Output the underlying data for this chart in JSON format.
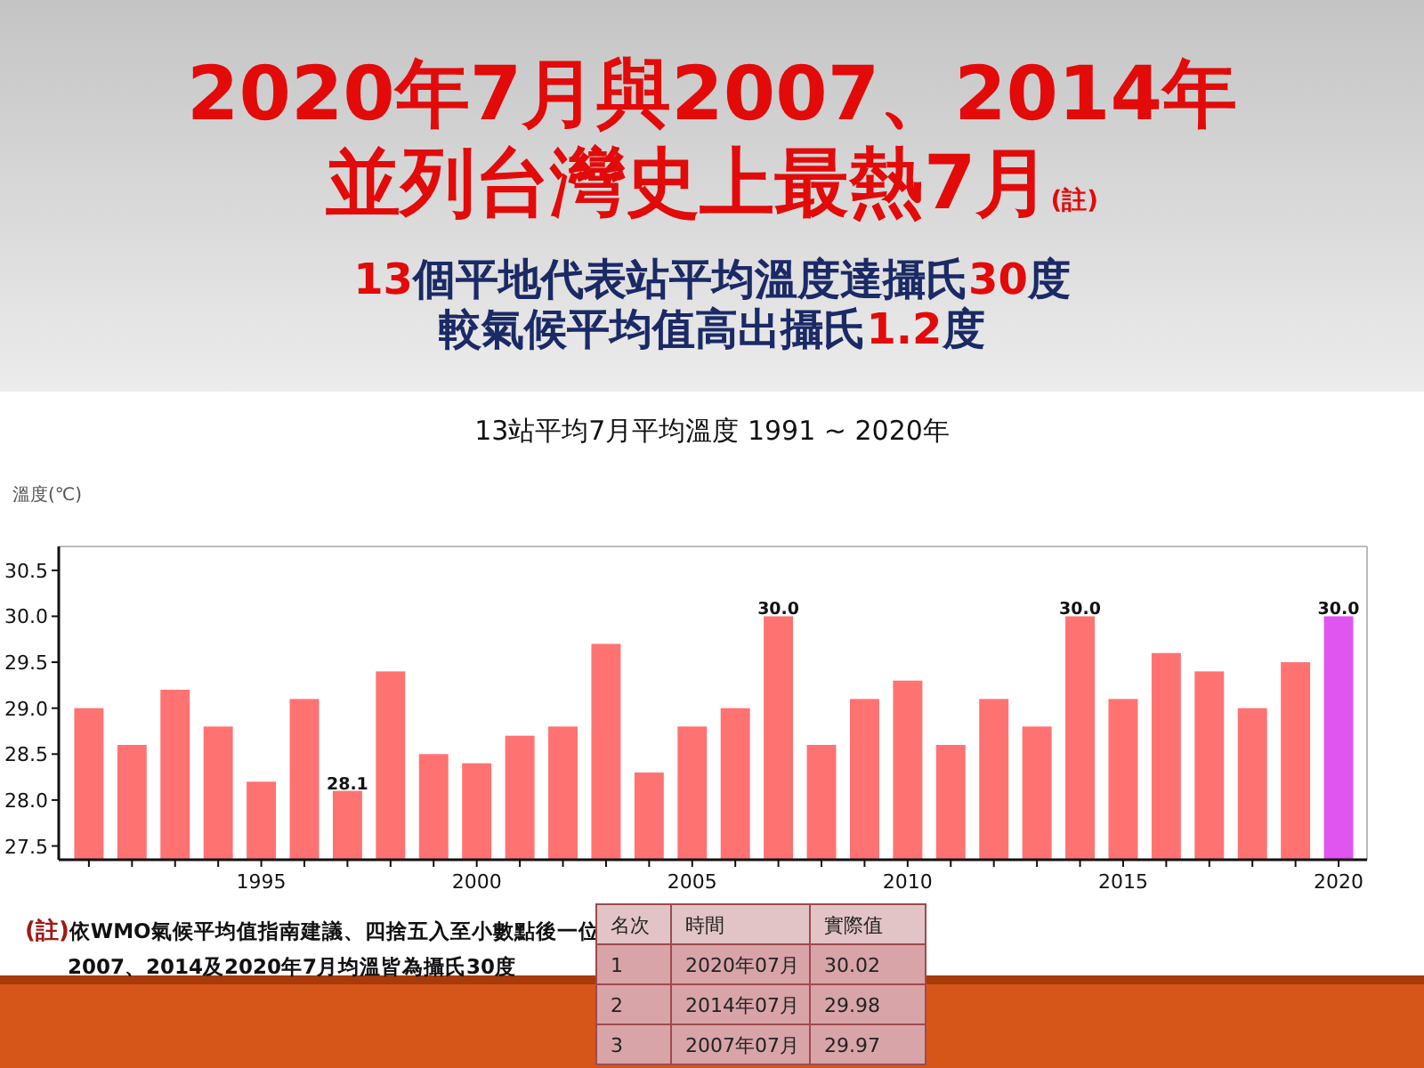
{
  "chart_data": [
    {
      "type": "other",
      "title": "2020年7月與2007、2014年並列台灣史上最熱7月(註)",
      "subtitle": "13個平地代表站平均溫度達攝氏30度較氣候平均值高出攝氏1.2度",
      "annotations": [
        "(註)依WMO氣候平均值指南建議、四捨五入至小數點後一位",
        "2007、2014及2020年7月均溫皆為攝氏30度",
        "名次",
        "時間",
        "實際值",
        "1",
        "2020年07月",
        "30.02",
        "2",
        "2014年07月",
        "29.98",
        "3",
        "2007年07月",
        "29.97"
      ]
    },
    {
      "type": "bar",
      "title": "13站平均7月平均溫度 1991 ~ 2020年",
      "ylabel": "溫度(℃)",
      "x": [
        1991,
        1992,
        1993,
        1994,
        1995,
        1996,
        1997,
        1998,
        1999,
        2000,
        2001,
        2002,
        2003,
        2004,
        2005,
        2006,
        2007,
        2008,
        2009,
        2010,
        2011,
        2012,
        2013,
        2014,
        2015,
        2016,
        2017,
        2018,
        2019,
        2020
      ],
      "values": [
        29.0,
        28.6,
        29.2,
        28.8,
        28.2,
        29.1,
        28.1,
        29.4,
        28.5,
        28.4,
        28.7,
        28.8,
        29.7,
        28.3,
        28.8,
        29.0,
        30.0,
        28.6,
        29.1,
        29.3,
        28.6,
        29.1,
        28.8,
        30.0,
        29.1,
        29.6,
        29.4,
        29.0,
        29.5,
        30.0
      ],
      "colors": [
        "#ff7272",
        "#ff7272",
        "#ff7272",
        "#ff7272",
        "#ff7272",
        "#ff7272",
        "#ff7272",
        "#ff7272",
        "#ff7272",
        "#ff7272",
        "#ff7272",
        "#ff7272",
        "#ff7272",
        "#ff7272",
        "#ff7272",
        "#ff7272",
        "#ff7272",
        "#ff7272",
        "#ff7272",
        "#ff7272",
        "#ff7272",
        "#ff7272",
        "#ff7272",
        "#ff7272",
        "#ff7272",
        "#ff7272",
        "#ff7272",
        "#ff7272",
        "#ff7272",
        "#e055f0"
      ],
      "value_labels": [
        null,
        null,
        null,
        null,
        null,
        null,
        "28.1",
        null,
        null,
        null,
        null,
        null,
        null,
        null,
        null,
        null,
        "30.0",
        null,
        null,
        null,
        null,
        null,
        null,
        "30.0",
        null,
        null,
        null,
        null,
        null,
        "30.0"
      ],
      "xlim": [
        1990.3,
        2020.66
      ],
      "ylim": [
        27.35,
        30.76
      ],
      "xticks": [
        {
          "value": 1991,
          "label": null
        },
        {
          "value": 1992,
          "label": null
        },
        {
          "value": 1993,
          "label": null
        },
        {
          "value": 1994,
          "label": null
        },
        1995,
        {
          "value": 1996,
          "label": null
        },
        {
          "value": 1997,
          "label": null
        },
        {
          "value": 1998,
          "label": null
        },
        {
          "value": 1999,
          "label": null
        },
        2000,
        {
          "value": 2001,
          "label": null
        },
        {
          "value": 2002,
          "label": null
        },
        {
          "value": 2003,
          "label": null
        },
        {
          "value": 2004,
          "label": null
        },
        2005,
        {
          "value": 2006,
          "label": null
        },
        {
          "value": 2007,
          "label": null
        },
        {
          "value": 2008,
          "label": null
        },
        {
          "value": 2009,
          "label": null
        },
        2010,
        {
          "value": 2011,
          "label": null
        },
        {
          "value": 2012,
          "label": null
        },
        {
          "value": 2013,
          "label": null
        },
        {
          "value": 2014,
          "label": null
        },
        2015,
        {
          "value": 2016,
          "label": null
        },
        {
          "value": 2017,
          "label": null
        },
        {
          "value": 2018,
          "label": null
        },
        {
          "value": 2019,
          "label": null
        },
        2020
      ],
      "yticks": [
        {
          "value": 27.5,
          "label": "27.5"
        },
        {
          "value": 28.0,
          "label": "28.0"
        },
        {
          "value": 28.5,
          "label": "28.5"
        },
        {
          "value": 29.0,
          "label": "29.0"
        },
        {
          "value": 29.5,
          "label": "29.5"
        },
        {
          "value": 30.0,
          "label": "30.0"
        },
        {
          "value": 30.5,
          "label": "30.5"
        }
      ],
      "grid": false
    }
  ]
}
